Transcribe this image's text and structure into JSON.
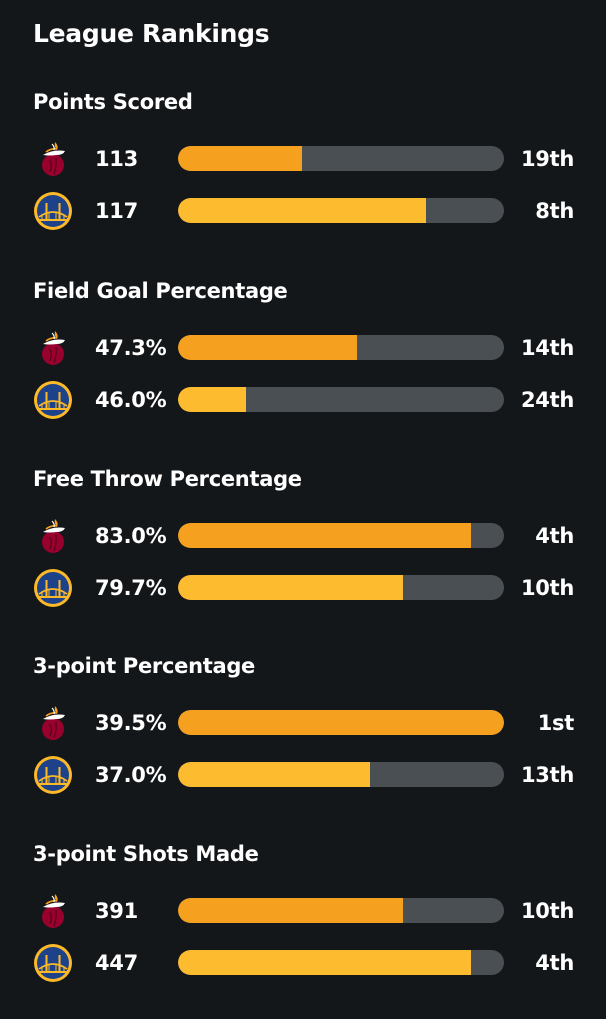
{
  "title": "League Rankings",
  "colors": {
    "team1_bar": "#f5a01f",
    "team2_bar": "#fdbb30",
    "track": "#4a4f54"
  },
  "teams": [
    {
      "icon": "heat-logo-icon"
    },
    {
      "icon": "warriors-logo-icon"
    }
  ],
  "stats": [
    {
      "label": "Points Scored",
      "rows": [
        {
          "value": "113",
          "rank": "19th",
          "fill": 0.38
        },
        {
          "value": "117",
          "rank": "8th",
          "fill": 0.76
        }
      ]
    },
    {
      "label": "Field Goal Percentage",
      "rows": [
        {
          "value": "47.3%",
          "rank": "14th",
          "fill": 0.55
        },
        {
          "value": "46.0%",
          "rank": "24th",
          "fill": 0.21
        }
      ]
    },
    {
      "label": "Free Throw Percentage",
      "rows": [
        {
          "value": "83.0%",
          "rank": "4th",
          "fill": 0.9
        },
        {
          "value": "79.7%",
          "rank": "10th",
          "fill": 0.69
        }
      ]
    },
    {
      "label": "3-point Percentage",
      "rows": [
        {
          "value": "39.5%",
          "rank": "1st",
          "fill": 1.0
        },
        {
          "value": "37.0%",
          "rank": "13th",
          "fill": 0.59
        }
      ]
    },
    {
      "label": "3-point Shots Made",
      "rows": [
        {
          "value": "391",
          "rank": "10th",
          "fill": 0.69
        },
        {
          "value": "447",
          "rank": "4th",
          "fill": 0.9
        }
      ]
    }
  ]
}
